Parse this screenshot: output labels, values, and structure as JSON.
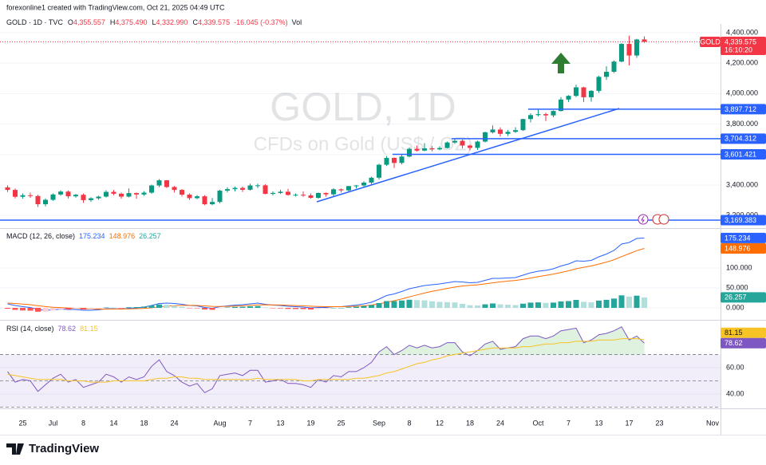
{
  "header": {
    "credit": "forexonline1 created with TradingView.com, Oct 21, 2025 04:49 UTC"
  },
  "chart_data": [
    {
      "type": "candlestick",
      "symbol": "GOLD · 1D · TVC",
      "legend": [
        {
          "label": "O",
          "text": "4,355.557"
        },
        {
          "label": "H",
          "text": "4,375.490"
        },
        {
          "label": "L",
          "text": "4,332.990"
        },
        {
          "label": "C",
          "text": "4,339.575"
        }
      ],
      "change": "-16.045 (-0.37%)",
      "volume_label": "Vol",
      "watermark": [
        "GOLD, 1D",
        "CFDs on Gold (US$ / OZ)"
      ],
      "categories": [
        null,
        null,
        "25",
        null,
        null,
        null,
        "Jul",
        null,
        null,
        null,
        "8",
        null,
        null,
        null,
        "14",
        null,
        null,
        null,
        "18",
        null,
        null,
        null,
        "24",
        null,
        null,
        null,
        null,
        null,
        "Aug",
        null,
        null,
        null,
        "7",
        null,
        null,
        null,
        "13",
        null,
        null,
        null,
        "19",
        null,
        null,
        null,
        "25",
        null,
        null,
        null,
        null,
        "Sep",
        null,
        null,
        null,
        "8",
        null,
        null,
        null,
        "12",
        null,
        null,
        null,
        "18",
        null,
        null,
        null,
        "24",
        null,
        null,
        null,
        null,
        "Oct",
        null,
        null,
        null,
        "7",
        null,
        null,
        null,
        "13",
        null,
        null,
        null,
        "17",
        null,
        null,
        null,
        "23",
        null,
        null,
        null,
        null,
        null,
        null,
        "Nov"
      ],
      "open": [
        3385,
        3368,
        3323,
        3333,
        3328,
        3274,
        3303,
        3338,
        3357,
        3326,
        3336,
        3301,
        3313,
        3324,
        3355,
        3343,
        3324,
        3347,
        3338,
        3350,
        3397,
        3431,
        3387,
        3368,
        3337,
        3314,
        3326,
        3274,
        3289,
        3363,
        3373,
        3381,
        3369,
        3397,
        3398,
        3342,
        3348,
        3356,
        3335,
        3336,
        3332,
        3316,
        3348,
        3339,
        3372,
        3365,
        3393,
        3397,
        3416,
        3448,
        3533,
        3578,
        3545,
        3587,
        3637,
        3626,
        3641,
        3634,
        3643,
        3679,
        3690,
        3659,
        3644,
        3685,
        3746,
        3764,
        3736,
        3749,
        3760,
        3833,
        3859,
        3865,
        3857,
        3886,
        3961,
        3985,
        4041,
        3976,
        4018,
        4110,
        4143,
        4210,
        4326,
        4250,
        4355.557,
        null,
        null,
        null,
        null,
        null,
        null,
        null,
        null,
        null
      ],
      "high": [
        3398,
        3378,
        3345,
        3350,
        3336,
        3312,
        3345,
        3365,
        3364,
        3342,
        3345,
        3320,
        3330,
        3366,
        3368,
        3350,
        3377,
        3351,
        3360,
        3403,
        3439,
        3433,
        3394,
        3373,
        3345,
        3334,
        3334,
        3315,
        3369,
        3385,
        3390,
        3390,
        3409,
        3409,
        3405,
        3358,
        3369,
        3375,
        3345,
        3358,
        3345,
        3351,
        3351,
        3379,
        3377,
        3394,
        3401,
        3424,
        3454,
        3540,
        3590,
        3582,
        3600,
        3646,
        3659,
        3675,
        3655,
        3655,
        3685,
        3707,
        3698,
        3665,
        3691,
        3750,
        3791,
        3779,
        3761,
        3780,
        3835,
        3871,
        3895,
        3875,
        3890,
        3977,
        3990,
        4059,
        4045,
        4023,
        4117,
        4180,
        4218,
        4330,
        4380,
        4360,
        4375.49,
        null,
        null,
        null,
        null,
        null,
        null,
        null,
        null,
        null
      ],
      "low": [
        3355,
        3312,
        3310,
        3316,
        3256,
        3260,
        3296,
        3330,
        3312,
        3317,
        3283,
        3289,
        3304,
        3318,
        3333,
        3310,
        3319,
        3310,
        3329,
        3343,
        3386,
        3380,
        3351,
        3325,
        3302,
        3307,
        3268,
        3268,
        3280,
        3352,
        3358,
        3355,
        3363,
        3380,
        3340,
        3331,
        3342,
        3330,
        3325,
        3323,
        3311,
        3311,
        3324,
        3322,
        3351,
        3351,
        3378,
        3388,
        3406,
        3436,
        3525,
        3512,
        3536,
        3582,
        3620,
        3622,
        3621,
        3628,
        3640,
        3670,
        3640,
        3628,
        3630,
        3680,
        3738,
        3718,
        3722,
        3742,
        3755,
        3811,
        3850,
        3820,
        3845,
        3882,
        3945,
        3977,
        3945,
        3947,
        4005,
        4090,
        4135,
        4205,
        4185,
        4235,
        4332.99,
        null,
        null,
        null,
        null,
        null,
        null,
        null,
        null,
        null
      ],
      "close": [
        3368,
        3323,
        3333,
        3328,
        3274,
        3303,
        3338,
        3357,
        3326,
        3336,
        3301,
        3313,
        3324,
        3355,
        3343,
        3324,
        3347,
        3338,
        3350,
        3397,
        3431,
        3387,
        3368,
        3337,
        3314,
        3326,
        3274,
        3289,
        3363,
        3373,
        3381,
        3369,
        3397,
        3398,
        3342,
        3348,
        3356,
        3335,
        3336,
        3332,
        3316,
        3348,
        3339,
        3372,
        3365,
        3393,
        3397,
        3416,
        3448,
        3533,
        3578,
        3545,
        3587,
        3637,
        3626,
        3641,
        3634,
        3643,
        3679,
        3690,
        3659,
        3644,
        3685,
        3746,
        3764,
        3736,
        3749,
        3760,
        3833,
        3859,
        3865,
        3857,
        3886,
        3961,
        3985,
        4041,
        3976,
        4018,
        4110,
        4143,
        4210,
        4326,
        4250,
        4355,
        4339.575,
        null,
        null,
        null,
        null,
        null,
        null,
        null,
        null,
        null
      ],
      "up_color": "#089981",
      "down_color": "#f23645",
      "ylim": [
        3133,
        4431
      ],
      "yticks": [
        {
          "value": 3200,
          "label": "3,200.000"
        },
        {
          "value": 3400,
          "label": "3,400.000"
        },
        {
          "value": 3600,
          "label": "3,600.000"
        },
        {
          "value": 3800,
          "label": "3,800.000"
        },
        {
          "value": 4000,
          "label": "4,000.000"
        },
        {
          "value": 4200,
          "label": "4,200.000"
        },
        {
          "value": 4400,
          "label": "4,400.000"
        }
      ],
      "grid": true,
      "price_tag": {
        "name": "GOLD",
        "value": 4339.575,
        "label": "4,339.575",
        "countdown": "16:10:20",
        "color": "#f23645"
      },
      "levels": [
        {
          "value": 3897.712,
          "label": "3,897.712"
        },
        {
          "value": 3704.312,
          "label": "3,704.312"
        },
        {
          "value": 3601.421,
          "label": "3,601.421"
        },
        {
          "value": 3169.383,
          "label": "3,169.383"
        }
      ],
      "level_color": "#2962ff"
    },
    {
      "type": "macd",
      "title": "MACD (12, 26, close)",
      "series": [
        {
          "color": "#2962ff",
          "style": "line",
          "values": [
            10,
            6,
            3,
            1,
            -4,
            -6,
            -5,
            -3,
            -4,
            -4,
            -6,
            -6,
            -5,
            -2,
            -2,
            -3,
            -1,
            0,
            2,
            6,
            11,
            12,
            11,
            9,
            6,
            5,
            1,
            -1,
            3,
            5,
            7,
            8,
            10,
            12,
            9,
            7,
            6,
            4,
            3,
            2,
            0,
            1,
            1,
            3,
            3,
            5,
            7,
            10,
            14,
            22,
            31,
            35,
            41,
            48,
            52,
            56,
            58,
            60,
            63,
            66,
            65,
            63,
            64,
            69,
            74,
            74,
            75,
            76,
            82,
            88,
            92,
            94,
            98,
            105,
            110,
            118,
            117,
            119,
            128,
            135,
            144,
            160,
            164,
            174,
            175.234,
            null,
            null,
            null,
            null,
            null,
            null,
            null,
            null,
            null
          ]
        },
        {
          "color": "#ff6d00",
          "style": "line",
          "values": [
            12,
            11,
            9.5,
            8,
            5.6,
            3.3,
            1.6,
            0.7,
            -0.2,
            -1,
            -2,
            -2.8,
            -3.2,
            -3,
            -2.8,
            -2.8,
            -2.5,
            -2,
            -1.2,
            0.2,
            2.4,
            4.3,
            5.6,
            6.3,
            6.2,
            6,
            5,
            3.8,
            3.6,
            3.9,
            4.5,
            5.2,
            6.2,
            7.4,
            7.7,
            7.6,
            7.3,
            6.6,
            5.9,
            5.1,
            4.1,
            3.5,
            3,
            3,
            3,
            3.4,
            4.1,
            5.3,
            7,
            10,
            14,
            18,
            22.5,
            27.6,
            32.5,
            37.2,
            41.4,
            45,
            48.7,
            52.2,
            54.8,
            56.4,
            57.9,
            60.1,
            62.9,
            65.1,
            67.1,
            68.9,
            71.5,
            74.8,
            78.2,
            81.4,
            84.7,
            88.8,
            93,
            98,
            101.8,
            105.2,
            109.8,
            114.8,
            120.7,
            128.6,
            135.7,
            143.4,
            148.976,
            null,
            null,
            null,
            null,
            null,
            null,
            null,
            null,
            null
          ]
        },
        {
          "color": "#26a69a",
          "style": "histogram",
          "values": [
            -2,
            -5,
            -6.5,
            -7,
            -9.6,
            -9.3,
            -6.6,
            -3.7,
            -3.8,
            -3,
            -4,
            -3.2,
            -1.8,
            1,
            0.8,
            -0.2,
            1.5,
            2,
            3.2,
            5.8,
            8.6,
            7.7,
            5.4,
            2.7,
            -0.2,
            -1,
            -4,
            -4.8,
            -0.6,
            1.1,
            2.5,
            2.8,
            3.8,
            4.6,
            1.3,
            -0.6,
            -1.3,
            -2.6,
            -2.9,
            -3.1,
            -4.1,
            -2.5,
            -2,
            0,
            0,
            1.6,
            2.9,
            4.7,
            7,
            12,
            17,
            17,
            18.5,
            20.4,
            19.5,
            18.8,
            16.6,
            15,
            14.3,
            13.8,
            10.2,
            6.6,
            6.1,
            8.9,
            11.1,
            8.9,
            7.9,
            7.1,
            10.5,
            13.2,
            13.8,
            12.6,
            13.3,
            16.2,
            17,
            20,
            15.2,
            13.8,
            18.2,
            20.2,
            23.3,
            31.4,
            28.3,
            30.6,
            26.257,
            null,
            null,
            null,
            null,
            null,
            null,
            null,
            null,
            null
          ]
        }
      ],
      "histogram_colors": {
        "rising_above": "#26a69a",
        "falling_above": "#b2dfdb",
        "falling_below": "#ff5252",
        "rising_below": "#ffcdd2"
      },
      "ylim": [
        -24,
        192
      ],
      "yticks": [
        {
          "value": 0,
          "label": "0.000"
        },
        {
          "value": 50,
          "label": "50.000"
        },
        {
          "value": 100,
          "label": "100.000"
        }
      ],
      "grid": true
    },
    {
      "type": "rsi",
      "title": "RSI (14, close)",
      "series": [
        {
          "color": "#7e57c2",
          "style": "line",
          "values": [
            57,
            49,
            51,
            50,
            42,
            47,
            52,
            55,
            49,
            51,
            45,
            47,
            49,
            55,
            53,
            49,
            53,
            51,
            53,
            61,
            66,
            57,
            54,
            49,
            46,
            48,
            41,
            44,
            54,
            55,
            56,
            54,
            58,
            58,
            49,
            50,
            51,
            48,
            48,
            47,
            45,
            51,
            49,
            54,
            53,
            57,
            57,
            60,
            64,
            72,
            76,
            70,
            73,
            77,
            75,
            77,
            75,
            76,
            79,
            79,
            72,
            69,
            73,
            78,
            80,
            74,
            75,
            76,
            82,
            84,
            84,
            82,
            84,
            88,
            89,
            90,
            79,
            81,
            85,
            86,
            88,
            91,
            81,
            84,
            78.62,
            null,
            null,
            null,
            null,
            null,
            null,
            null,
            null,
            null
          ]
        },
        {
          "color": "#f7c325",
          "style": "line",
          "values": [
            55,
            54,
            53,
            52,
            51,
            51,
            51,
            51,
            50,
            50,
            50,
            49,
            49,
            49,
            50,
            50,
            50,
            50,
            50,
            51,
            52,
            52,
            53,
            53,
            52,
            52,
            51,
            51,
            51,
            51,
            51,
            51,
            51,
            52,
            51,
            51,
            51,
            51,
            51,
            50,
            50,
            51,
            51,
            51,
            51,
            51,
            52,
            52,
            53,
            54,
            56,
            57,
            59,
            61,
            63,
            64,
            66,
            67,
            69,
            70,
            71,
            72,
            73,
            74,
            75,
            75,
            75,
            75,
            76,
            76,
            77,
            78,
            78,
            79,
            79,
            80,
            80,
            80,
            81,
            81,
            81,
            82,
            82,
            82,
            81.15,
            null,
            null,
            null,
            null,
            null,
            null,
            null,
            null,
            null
          ]
        }
      ],
      "reference_lines": [
        70,
        50,
        30
      ],
      "band_color": "rgba(126,87,194,0.10)",
      "overbought_color": "rgba(76,175,80,0.18)",
      "ylim": [
        30.3,
        93.9
      ],
      "yticks": [
        {
          "value": 40,
          "label": "40.00"
        },
        {
          "value": 60,
          "label": "60.00"
        }
      ],
      "grid": true
    }
  ],
  "footer": {
    "logo": "TradingView"
  }
}
